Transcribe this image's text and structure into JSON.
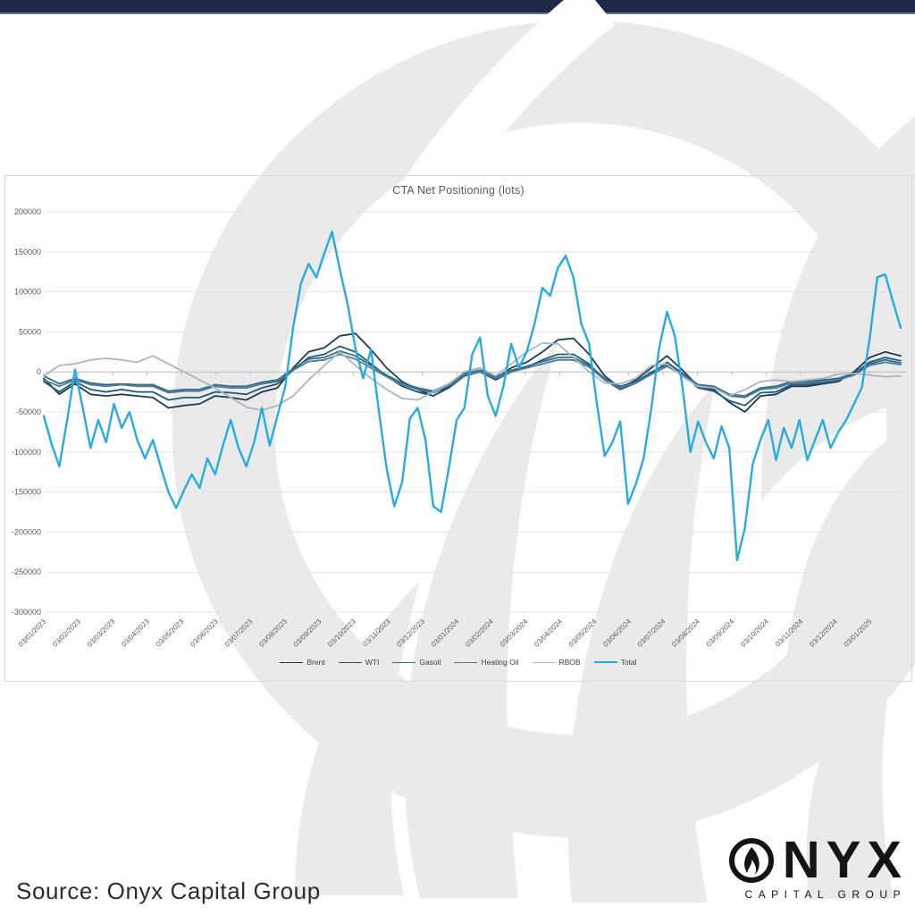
{
  "page": {
    "top_bar_color": "#1f2947",
    "background_color": "#ffffff",
    "watermark_color": "#eaeaea"
  },
  "chart_data": {
    "type": "line",
    "title": "CTA Net Positioning (lots)",
    "xlabel": "",
    "ylabel": "",
    "unit": "lots",
    "grid": true,
    "legend_position": "bottom",
    "ylim": [
      -300000,
      200000
    ],
    "y_tick_step": 50000,
    "y_tick_labels": [
      "200000",
      "150000",
      "100000",
      "50000",
      "0",
      "-50000",
      "-100000",
      "-150000",
      "-200000",
      "-250000",
      "-300000"
    ],
    "x_tick_labels": [
      "03/01/2023",
      "03/02/2023",
      "03/03/2023",
      "03/04/2023",
      "03/05/2023",
      "03/06/2023",
      "03/07/2023",
      "03/08/2023",
      "03/09/2023",
      "03/10/2023",
      "03/11/2023",
      "03/12/2023",
      "03/01/2024",
      "03/02/2024",
      "03/03/2024",
      "03/04/2024",
      "03/05/2024",
      "03/06/2024",
      "03/07/2024",
      "03/08/2024",
      "03/09/2024",
      "03/10/2024",
      "03/11/2024",
      "03/12/2024",
      "03/01/2025"
    ],
    "series": [
      {
        "name": "Brent",
        "color": "#1f3a54",
        "width": 1.8,
        "values": [
          -8000,
          -28000,
          -15000,
          -28000,
          -30000,
          -28000,
          -30000,
          -32000,
          -45000,
          -42000,
          -40000,
          -30000,
          -32000,
          -35000,
          -25000,
          -20000,
          5000,
          25000,
          30000,
          45000,
          48000,
          28000,
          5000,
          -12000,
          -22000,
          -30000,
          -18000,
          0,
          5000,
          -8000,
          5000,
          12000,
          25000,
          40000,
          42000,
          22000,
          -5000,
          -20000,
          -10000,
          5000,
          20000,
          2000,
          -18000,
          -22000,
          -38000,
          -50000,
          -30000,
          -28000,
          -18000,
          -18000,
          -15000,
          -12000,
          0,
          18000,
          25000,
          20000
        ]
      },
      {
        "name": "WTI",
        "color": "#205a74",
        "width": 1.8,
        "values": [
          -12000,
          -25000,
          -12000,
          -22000,
          -25000,
          -22000,
          -25000,
          -25000,
          -35000,
          -32000,
          -32000,
          -25000,
          -26000,
          -28000,
          -20000,
          -15000,
          2000,
          18000,
          22000,
          32000,
          25000,
          10000,
          -5000,
          -18000,
          -25000,
          -30000,
          -20000,
          -5000,
          0,
          -10000,
          0,
          6000,
          15000,
          22000,
          22000,
          10000,
          -10000,
          -22000,
          -14000,
          -2000,
          12000,
          -2000,
          -20000,
          -24000,
          -36000,
          -42000,
          -26000,
          -25000,
          -16000,
          -16000,
          -14000,
          -10000,
          -2000,
          12000,
          18000,
          14000
        ]
      },
      {
        "name": "Gasoil",
        "color": "#2e6d8e",
        "width": 1.8,
        "values": [
          -5000,
          -15000,
          -8000,
          -14000,
          -16000,
          -15000,
          -16000,
          -16000,
          -24000,
          -22000,
          -22000,
          -16000,
          -18000,
          -18000,
          -13000,
          -10000,
          4000,
          16000,
          18000,
          26000,
          20000,
          8000,
          -4000,
          -14000,
          -20000,
          -24000,
          -15000,
          -2000,
          2000,
          -6000,
          2000,
          7000,
          13000,
          18000,
          18000,
          8000,
          -8000,
          -18000,
          -12000,
          0,
          9000,
          -2000,
          -16000,
          -18000,
          -28000,
          -30000,
          -20000,
          -18000,
          -12000,
          -12000,
          -10000,
          -8000,
          -2000,
          10000,
          15000,
          11000
        ]
      },
      {
        "name": "Heating Oil",
        "color": "#53788f",
        "width": 1.8,
        "values": [
          -10000,
          -18000,
          -10000,
          -16000,
          -18000,
          -16000,
          -18000,
          -18000,
          -26000,
          -24000,
          -24000,
          -18000,
          -20000,
          -20000,
          -15000,
          -12000,
          2000,
          13000,
          15000,
          22000,
          16000,
          5000,
          -6000,
          -16000,
          -22000,
          -26000,
          -17000,
          -4000,
          0,
          -8000,
          0,
          5000,
          10000,
          15000,
          15000,
          6000,
          -10000,
          -20000,
          -14000,
          -3000,
          7000,
          -4000,
          -18000,
          -20000,
          -30000,
          -32000,
          -22000,
          -20000,
          -14000,
          -14000,
          -12000,
          -10000,
          -4000,
          8000,
          12000,
          9000
        ]
      },
      {
        "name": "RBOB",
        "color": "#a9b7c3",
        "width": 1.8,
        "values": [
          -5000,
          8000,
          10000,
          15000,
          17000,
          15000,
          12000,
          20000,
          10000,
          0,
          -10000,
          -20000,
          -32000,
          -44000,
          -48000,
          -42000,
          -30000,
          -10000,
          8000,
          25000,
          8000,
          -8000,
          -22000,
          -33000,
          -35000,
          -25000,
          -15000,
          0,
          5000,
          -5000,
          10000,
          25000,
          36000,
          35000,
          18000,
          0,
          -14000,
          -15000,
          -8000,
          8000,
          10000,
          -6000,
          -18000,
          -20000,
          -30000,
          -22000,
          -12000,
          -10000,
          -12000,
          -10000,
          -8000,
          -3000,
          -2000,
          -4000,
          -6000,
          -5000
        ]
      },
      {
        "name": "Total",
        "color": "#29abe2",
        "width": 2.4,
        "values": [
          -55000,
          -90000,
          -118000,
          -60000,
          3000,
          -45000,
          -95000,
          -60000,
          -88000,
          -40000,
          -70000,
          -50000,
          -85000,
          -108000,
          -85000,
          -118000,
          -150000,
          -170000,
          -148000,
          -128000,
          -145000,
          -108000,
          -128000,
          -92000,
          -60000,
          -95000,
          -118000,
          -88000,
          -45000,
          -92000,
          -55000,
          -18000,
          55000,
          110000,
          135000,
          118000,
          148000,
          175000,
          128000,
          85000,
          30000,
          -8000,
          28000,
          -48000,
          -120000,
          -168000,
          -138000,
          -58000,
          -45000,
          -85000,
          -168000,
          -175000,
          -120000,
          -60000,
          -45000,
          22000,
          43000,
          -30000,
          -55000,
          -18000,
          35000,
          5000,
          25000,
          60000,
          105000,
          95000,
          130000,
          145000,
          118000,
          60000,
          35000,
          -40000,
          -105000,
          -88000,
          -62000,
          -165000,
          -140000,
          -108000,
          -45000,
          30000,
          75000,
          45000,
          -20000,
          -100000,
          -62000,
          -88000,
          -108000,
          -68000,
          -95000,
          -235000,
          -195000,
          -115000,
          -85000,
          -60000,
          -110000,
          -70000,
          -95000,
          -60000,
          -110000,
          -85000,
          -60000,
          -95000,
          -75000,
          -60000,
          -40000,
          -20000,
          40000,
          118000,
          122000,
          88000,
          55000
        ]
      }
    ]
  },
  "footer": {
    "source_text": "Source: Onyx Capital Group"
  },
  "logo": {
    "wordmark_rest": "NYX",
    "subtext": "CAPITAL GROUP"
  }
}
